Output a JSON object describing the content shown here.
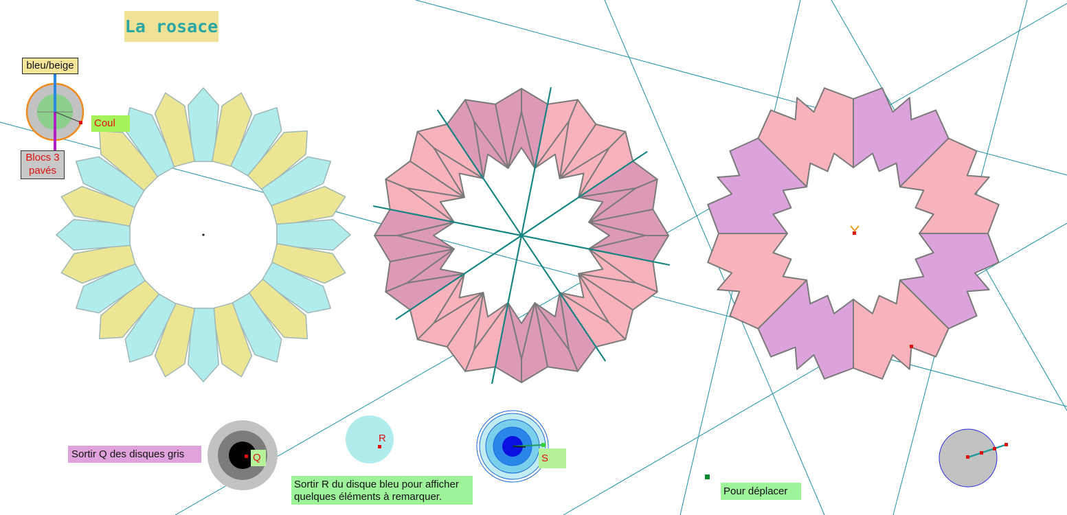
{
  "title": "La rosace",
  "labels": {
    "color_mode": "bleu/beige",
    "blocks_mode": "Blocs 3 pavés",
    "color_point": "Coul",
    "instruction_q": "Sortir Q des disques gris",
    "point_q": "Q",
    "point_r": "R",
    "point_s": "S",
    "instruction_r": "Sortir R du disque bleu pour afficher quelques éléments à remarquer.",
    "move": "Pour déplacer"
  },
  "colors": {
    "blue_tile": "#b0ecec",
    "beige_tile": "#ece594",
    "pink_tile": "#f7b2bc",
    "mauve_tile": "#dc9ab6",
    "purple_tile": "#dca2dc",
    "tile_outline": "#7a7a7a",
    "construction_line": "#1a8fa6",
    "radial_line": "#178484",
    "point": "#e01010"
  }
}
